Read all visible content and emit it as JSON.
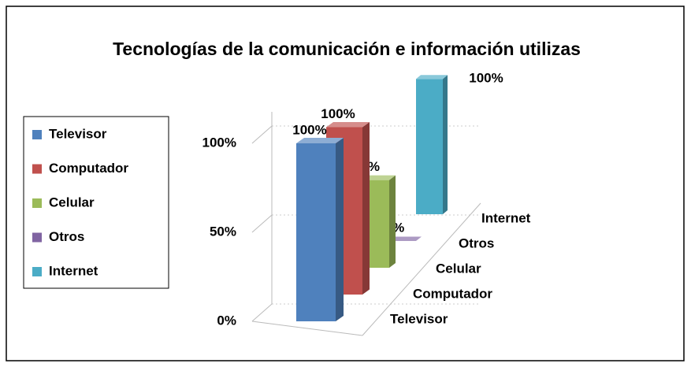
{
  "chart_data": {
    "type": "bar3d",
    "title": "Tecnologías de la comunicación e información utilizas",
    "categories": [
      "Televisor",
      "Computador",
      "Celular",
      "Otros",
      "Internet"
    ],
    "values": [
      100,
      100,
      56,
      0,
      100
    ],
    "value_labels": [
      "100%",
      "100%",
      "56%",
      "0%",
      "100%"
    ],
    "colors": [
      "#4f81bd",
      "#c0504d",
      "#9bbb59",
      "#8064a2",
      "#4bacc6"
    ],
    "ylim": [
      0,
      100
    ],
    "yticks": [
      {
        "value": 0,
        "label": "0%"
      },
      {
        "value": 50,
        "label": "50%"
      },
      {
        "value": 100,
        "label": "100%"
      }
    ],
    "grid": true,
    "legend": "left"
  }
}
